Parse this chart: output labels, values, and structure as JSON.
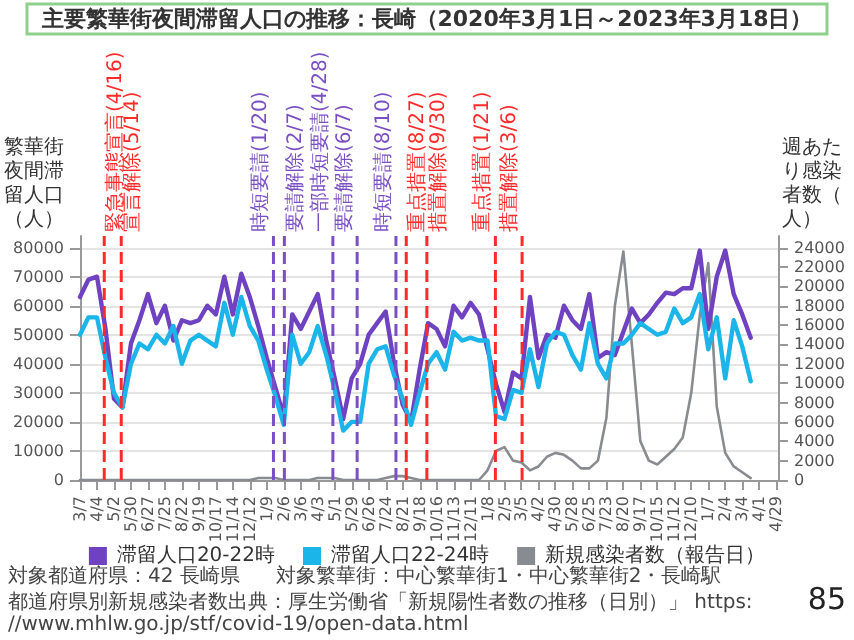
{
  "chart_data": {
    "type": "line",
    "title": "主要繁華街夜間滞留人口の推移：長崎（2020年3月1日～2023年3月18日）",
    "ylabel": "繁華街夜間滞留人口（人）",
    "y2label": "週あたり感染者数（人）",
    "x": [
      "2020-03-07",
      "2020-03-21",
      "2020-04-04",
      "2020-04-18",
      "2020-05-02",
      "2020-05-16",
      "2020-05-30",
      "2020-06-13",
      "2020-06-27",
      "2020-07-11",
      "2020-07-25",
      "2020-08-08",
      "2020-08-22",
      "2020-09-05",
      "2020-09-19",
      "2020-10-03",
      "2020-10-17",
      "2020-10-31",
      "2020-11-14",
      "2020-11-28",
      "2020-12-12",
      "2020-12-26",
      "2021-01-09",
      "2021-01-23",
      "2021-02-06",
      "2021-02-20",
      "2021-03-06",
      "2021-03-20",
      "2021-04-03",
      "2021-04-17",
      "2021-05-01",
      "2021-05-15",
      "2021-05-29",
      "2021-06-12",
      "2021-06-26",
      "2021-07-10",
      "2021-07-24",
      "2021-08-07",
      "2021-08-21",
      "2021-09-04",
      "2021-09-18",
      "2021-10-02",
      "2021-10-16",
      "2021-10-30",
      "2021-11-13",
      "2021-11-27",
      "2021-12-11",
      "2021-12-25",
      "2022-01-08",
      "2022-01-22",
      "2022-02-05",
      "2022-02-19",
      "2022-03-05",
      "2022-03-19",
      "2022-04-02",
      "2022-04-16",
      "2022-04-30",
      "2022-05-14",
      "2022-05-28",
      "2022-06-11",
      "2022-06-25",
      "2022-07-09",
      "2022-07-23",
      "2022-08-06",
      "2022-08-20",
      "2022-09-03",
      "2022-09-17",
      "2022-10-01",
      "2022-10-15",
      "2022-10-29",
      "2022-11-12",
      "2022-11-26",
      "2022-12-10",
      "2022-12-24",
      "2023-01-07",
      "2023-01-21",
      "2023-02-04",
      "2023-02-18",
      "2023-03-04",
      "2023-03-18"
    ],
    "series": [
      {
        "name": "滞留人口20-22時",
        "color": "#6f42c1",
        "values": [
          63000,
          69000,
          70000,
          52000,
          28000,
          25000,
          47000,
          55000,
          64000,
          54000,
          60000,
          48000,
          55000,
          54000,
          55000,
          60000,
          57000,
          70000,
          57000,
          71000,
          63000,
          53000,
          42000,
          32000,
          22000,
          57000,
          52000,
          58000,
          64000,
          48000,
          35000,
          21000,
          35000,
          40000,
          50000,
          54000,
          58000,
          40000,
          26000,
          20000,
          38000,
          54000,
          52000,
          46000,
          60000,
          56000,
          61000,
          57000,
          45000,
          33000,
          23500,
          37000,
          35000,
          63000,
          42000,
          50000,
          49000,
          60000,
          55000,
          52000,
          64000,
          42000,
          44000,
          43000,
          51000,
          59000,
          54000,
          57000,
          61000,
          64500,
          64000,
          66000,
          66000,
          79000,
          52000,
          70000,
          79000,
          64000,
          57000,
          49000
        ]
      },
      {
        "name": "滞留人口22-24時",
        "color": "#1bb5ea",
        "values": [
          50000,
          56000,
          56000,
          42000,
          30000,
          25000,
          40000,
          47000,
          45000,
          50000,
          47000,
          53000,
          40000,
          48000,
          50000,
          48000,
          46000,
          61000,
          50000,
          63000,
          53000,
          48000,
          38000,
          29000,
          19000,
          50000,
          40000,
          44000,
          53000,
          43000,
          31000,
          17000,
          20000,
          20000,
          40000,
          45000,
          46000,
          36000,
          28000,
          19000,
          30000,
          40000,
          44000,
          38000,
          51000,
          48000,
          49000,
          48000,
          48000,
          22000,
          21000,
          31000,
          30000,
          45000,
          32000,
          47000,
          51000,
          50000,
          43000,
          38000,
          54000,
          40000,
          35000,
          47000,
          47000,
          50000,
          54000,
          52000,
          50000,
          51000,
          59000,
          54000,
          56000,
          64000,
          45000,
          56000,
          35000,
          55000,
          46000,
          34000
        ]
      },
      {
        "name": "新規感染者数（報告日）",
        "color": "#888c90",
        "axis": "y2",
        "values": [
          0,
          0,
          0,
          0,
          0,
          0,
          0,
          0,
          0,
          0,
          0,
          0,
          0,
          0,
          0,
          0,
          0,
          0,
          0,
          0,
          0,
          200,
          200,
          200,
          0,
          0,
          0,
          0,
          200,
          200,
          200,
          0,
          0,
          0,
          0,
          0,
          200,
          400,
          400,
          200,
          0,
          0,
          0,
          0,
          0,
          0,
          0,
          0,
          1000,
          3000,
          3400,
          2000,
          1800,
          1000,
          1400,
          2400,
          2800,
          2600,
          2000,
          1200,
          1200,
          2000,
          6400,
          18000,
          23600,
          14000,
          4000,
          2000,
          1600,
          2400,
          3200,
          4400,
          9000,
          17000,
          22400,
          7600,
          2800,
          1400,
          800,
          200
        ]
      }
    ],
    "xlim": [
      "2020-03-07",
      "2023-05-02"
    ],
    "xticks": [
      {
        "value": "2020-03-07",
        "label": "3/7"
      },
      {
        "value": "2020-04-04",
        "label": "4/4"
      },
      {
        "value": "2020-05-02",
        "label": "5/2"
      },
      {
        "value": "2020-05-30",
        "label": "5/30"
      },
      {
        "value": "2020-06-27",
        "label": "6/27"
      },
      {
        "value": "2020-07-25",
        "label": "7/25"
      },
      {
        "value": "2020-08-22",
        "label": "8/22"
      },
      {
        "value": "2020-09-19",
        "label": "9/19"
      },
      {
        "value": "2020-10-17",
        "label": "10/17"
      },
      {
        "value": "2020-11-14",
        "label": "11/14"
      },
      {
        "value": "2020-12-12",
        "label": "12/12"
      },
      {
        "value": "2021-01-09",
        "label": "1/9"
      },
      {
        "value": "2021-02-06",
        "label": "2/6"
      },
      {
        "value": "2021-03-06",
        "label": "3/6"
      },
      {
        "value": "2021-04-03",
        "label": "4/3"
      },
      {
        "value": "2021-05-01",
        "label": "5/1"
      },
      {
        "value": "2021-05-29",
        "label": "5/29"
      },
      {
        "value": "2021-06-26",
        "label": "6/26"
      },
      {
        "value": "2021-07-24",
        "label": "7/24"
      },
      {
        "value": "2021-08-21",
        "label": "8/21"
      },
      {
        "value": "2021-09-18",
        "label": "9/18"
      },
      {
        "value": "2021-10-16",
        "label": "10/16"
      },
      {
        "value": "2021-11-13",
        "label": "11/13"
      },
      {
        "value": "2021-12-11",
        "label": "12/11"
      },
      {
        "value": "2022-01-08",
        "label": "1/8"
      },
      {
        "value": "2022-02-05",
        "label": "2/5"
      },
      {
        "value": "2022-03-05",
        "label": "3/5"
      },
      {
        "value": "2022-04-02",
        "label": "4/2"
      },
      {
        "value": "2022-04-30",
        "label": "4/30"
      },
      {
        "value": "2022-05-28",
        "label": "5/28"
      },
      {
        "value": "2022-06-25",
        "label": "6/25"
      },
      {
        "value": "2022-07-23",
        "label": "7/23"
      },
      {
        "value": "2022-08-20",
        "label": "8/20"
      },
      {
        "value": "2022-09-17",
        "label": "9/17"
      },
      {
        "value": "2022-10-15",
        "label": "10/15"
      },
      {
        "value": "2022-11-12",
        "label": "11/12"
      },
      {
        "value": "2022-12-10",
        "label": "12/10"
      },
      {
        "value": "2023-01-07",
        "label": "1/7"
      },
      {
        "value": "2023-02-04",
        "label": "2/4"
      },
      {
        "value": "2023-03-04",
        "label": "3/4"
      },
      {
        "value": "2023-04-01",
        "label": "4/1"
      },
      {
        "value": "2023-04-29",
        "label": "4/29"
      }
    ],
    "ylim": [
      0,
      84000
    ],
    "yticks": [
      0,
      10000,
      20000,
      30000,
      40000,
      50000,
      60000,
      70000,
      80000
    ],
    "y2lim": [
      0,
      25200
    ],
    "y2ticks": [
      0,
      2000,
      4000,
      6000,
      8000,
      10000,
      12000,
      14000,
      16000,
      18000,
      20000,
      22000,
      24000
    ],
    "ref_lines": [
      {
        "axis": "x",
        "value": "2020-04-16",
        "label": "緊急事態宣言(4/16)",
        "color": "#ff2a2a",
        "line_style": "dashed"
      },
      {
        "axis": "x",
        "value": "2020-05-14",
        "label": "宣言解除(5/14)",
        "color": "#ff2a2a",
        "line_style": "dashed"
      },
      {
        "axis": "x",
        "value": "2021-01-20",
        "label": "時短要請(1/20)",
        "color": "#7b4fc4",
        "line_style": "dashed"
      },
      {
        "axis": "x",
        "value": "2021-02-07",
        "label": "要請解除(2/7)",
        "color": "#7b4fc4",
        "line_style": "dashed"
      },
      {
        "axis": "x",
        "value": "2021-04-28",
        "label": "一部時短要請(4/28)",
        "color": "#7b4fc4",
        "line_style": "dashed"
      },
      {
        "axis": "x",
        "value": "2021-06-07",
        "label": "要請解除(6/7)",
        "color": "#7b4fc4",
        "line_style": "dashed"
      },
      {
        "axis": "x",
        "value": "2021-08-10",
        "label": "時短要請(8/10)",
        "color": "#7b4fc4",
        "line_style": "dashed"
      },
      {
        "axis": "x",
        "value": "2021-08-27",
        "label": "重点措置(8/27)",
        "color": "#ff2a2a",
        "line_style": "dashed"
      },
      {
        "axis": "x",
        "value": "2021-09-30",
        "label": "措置解除(9/30)",
        "color": "#ff2a2a",
        "line_style": "dashed"
      },
      {
        "axis": "x",
        "value": "2022-01-21",
        "label": "重点措置(1/21)",
        "color": "#ff2a2a",
        "line_style": "dashed"
      },
      {
        "axis": "x",
        "value": "2022-03-06",
        "label": "措置解除(3/6)",
        "color": "#ff2a2a",
        "line_style": "dashed"
      }
    ],
    "annotations": [
      "対象都道府県：42 長崎県",
      "対象繁華街：中心繁華街1・中心繁華街2・長崎駅",
      "都道府県別新規感染者数出典：厚生労働省「新規陽性者数の推移（日別）」 https://www.mhlw.go.jp/stf/covid-19/open-data.html",
      "85"
    ],
    "grid": "y",
    "legend": "bottom",
    "marker": "none",
    "line_style": "solid"
  }
}
